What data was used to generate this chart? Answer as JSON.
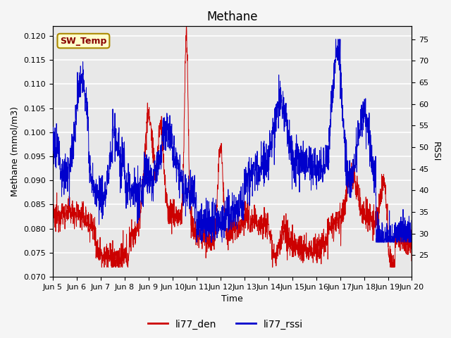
{
  "title": "Methane",
  "ylabel_left": "Methane (mmol/m3)",
  "ylabel_right": "RSSI",
  "xlabel": "Time",
  "ylim_left": [
    0.07,
    0.122
  ],
  "ylim_right": [
    20,
    78
  ],
  "yticks_left": [
    0.07,
    0.075,
    0.08,
    0.085,
    0.09,
    0.095,
    0.1,
    0.105,
    0.11,
    0.115,
    0.12
  ],
  "yticks_right": [
    25,
    30,
    35,
    40,
    45,
    50,
    55,
    60,
    65,
    70,
    75
  ],
  "xtick_labels": [
    "Jun 5",
    "Jun 6",
    "Jun 7",
    "Jun 8",
    "Jun 9",
    "Jun 10",
    "Jun 11",
    "Jun 12",
    "Jun 13",
    "Jun 14",
    "Jun 15",
    "Jun 16",
    "Jun 17",
    "Jun 18",
    "Jun 19",
    "Jun 20"
  ],
  "color_den": "#cc0000",
  "color_rssi": "#0000cc",
  "legend_labels": [
    "li77_den",
    "li77_rssi"
  ],
  "annotation_text": "SW_Temp",
  "annotation_bg": "#ffffcc",
  "annotation_border": "#aa8800",
  "annotation_text_color": "#880000",
  "background_color": "#e8e8e8",
  "grid_color": "#ffffff",
  "title_fontsize": 12,
  "axis_fontsize": 9,
  "tick_fontsize": 8,
  "legend_fontsize": 10
}
